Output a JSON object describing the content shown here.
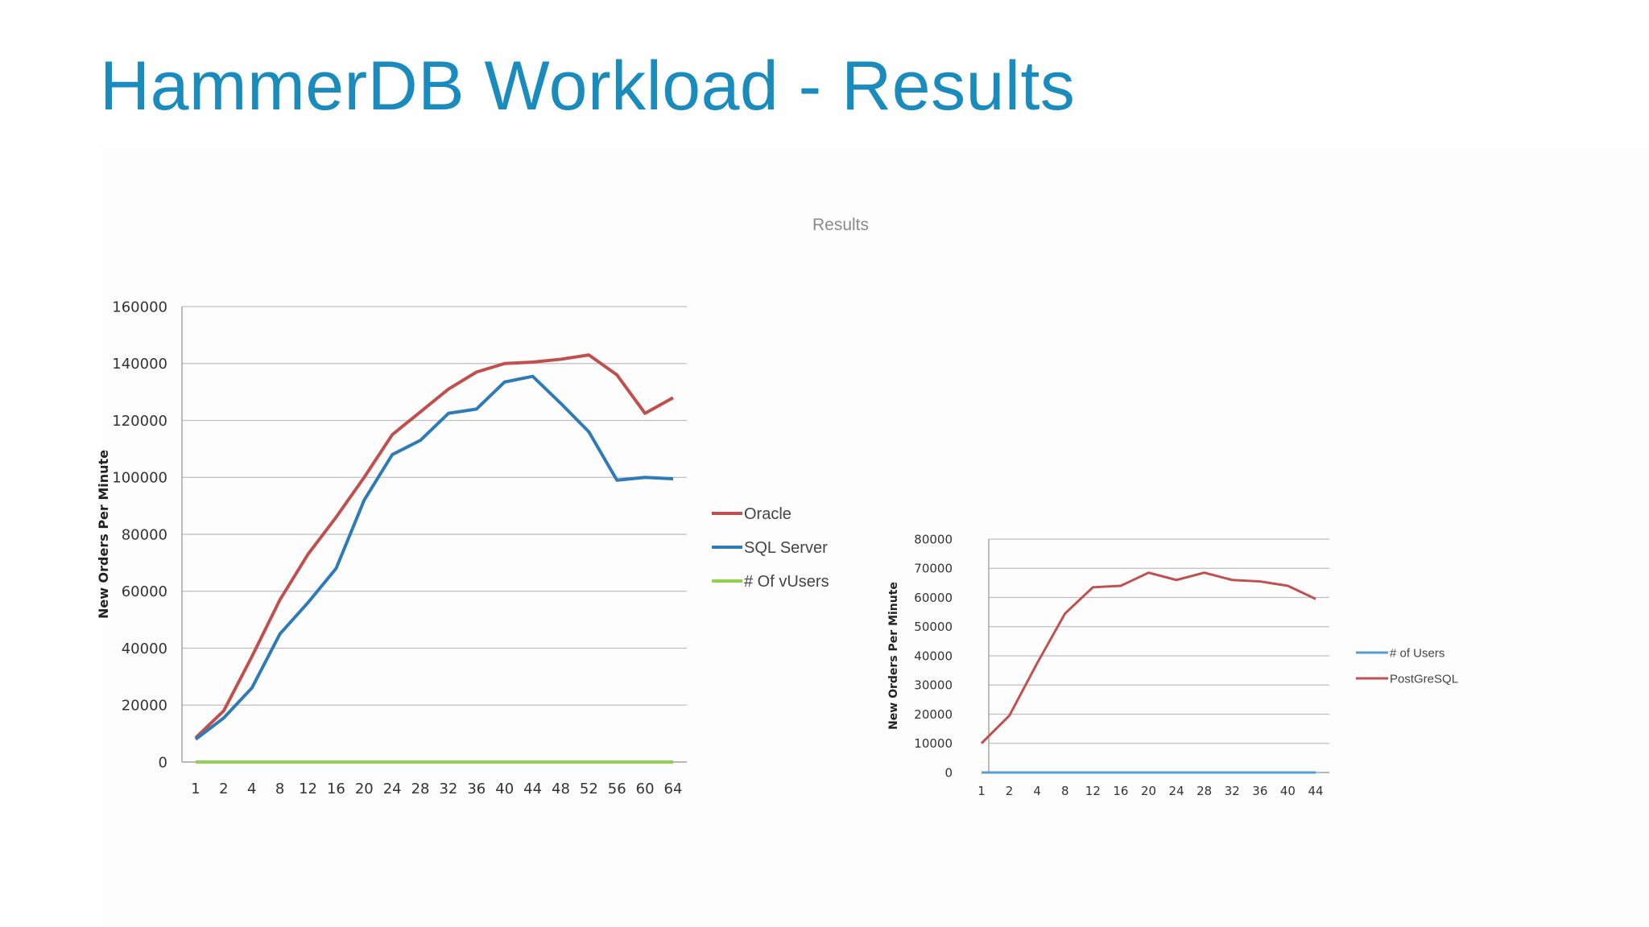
{
  "slide": {
    "title": "HammerDB Workload - Results",
    "image_label": "Results"
  },
  "colors": {
    "title": "#1a8bbd",
    "oracle": "#c0504d",
    "sqlserver": "#2e7bb6",
    "vusers": "#92d050",
    "postgres": "#c0504d",
    "users": "#5b9bd5",
    "grid": "#bfbfbf"
  },
  "chart_data": [
    {
      "type": "line",
      "ylabel": "New Orders Per Minute",
      "xlabel": "",
      "categories": [
        "1",
        "2",
        "4",
        "8",
        "12",
        "16",
        "20",
        "24",
        "28",
        "32",
        "36",
        "40",
        "44",
        "48",
        "52",
        "56",
        "60",
        "64"
      ],
      "ylim": [
        0,
        160000
      ],
      "yticks": [
        "0",
        "20000",
        "40000",
        "60000",
        "80000",
        "100000",
        "120000",
        "140000",
        "160000"
      ],
      "grid": true,
      "legend_position": "right",
      "series": [
        {
          "name": "Oracle",
          "color_key": "oracle",
          "values": [
            8500,
            18000,
            37000,
            57000,
            73000,
            86000,
            100000,
            115000,
            123000,
            131000,
            137000,
            140000,
            140500,
            141500,
            143000,
            136000,
            122500,
            128000
          ]
        },
        {
          "name": "SQL Server",
          "color_key": "sqlserver",
          "values": [
            8000,
            15500,
            26000,
            45000,
            56000,
            68000,
            92000,
            108000,
            113000,
            122500,
            124000,
            133500,
            135500,
            126000,
            116000,
            99000,
            100000,
            99500
          ]
        },
        {
          "name": "# Of vUsers",
          "color_key": "vusers",
          "values": [
            0,
            0,
            0,
            0,
            0,
            0,
            0,
            0,
            0,
            0,
            0,
            0,
            0,
            0,
            0,
            0,
            0,
            0
          ]
        }
      ]
    },
    {
      "type": "line",
      "ylabel": "New Orders Per Minute",
      "xlabel": "",
      "categories": [
        "1",
        "2",
        "4",
        "8",
        "12",
        "16",
        "20",
        "24",
        "28",
        "32",
        "36",
        "40",
        "44"
      ],
      "ylim": [
        0,
        80000
      ],
      "yticks": [
        "0",
        "10000",
        "20000",
        "30000",
        "40000",
        "50000",
        "60000",
        "70000",
        "80000"
      ],
      "grid": true,
      "legend_position": "right",
      "series": [
        {
          "name": "# of Users",
          "color_key": "users",
          "values": [
            0,
            0,
            0,
            0,
            0,
            0,
            0,
            0,
            0,
            0,
            0,
            0,
            0
          ]
        },
        {
          "name": "PostGreSQL",
          "color_key": "postgres",
          "values": [
            10000,
            19500,
            37500,
            54500,
            63500,
            64000,
            68500,
            66000,
            68500,
            66000,
            65500,
            64000,
            59500
          ]
        }
      ]
    }
  ]
}
